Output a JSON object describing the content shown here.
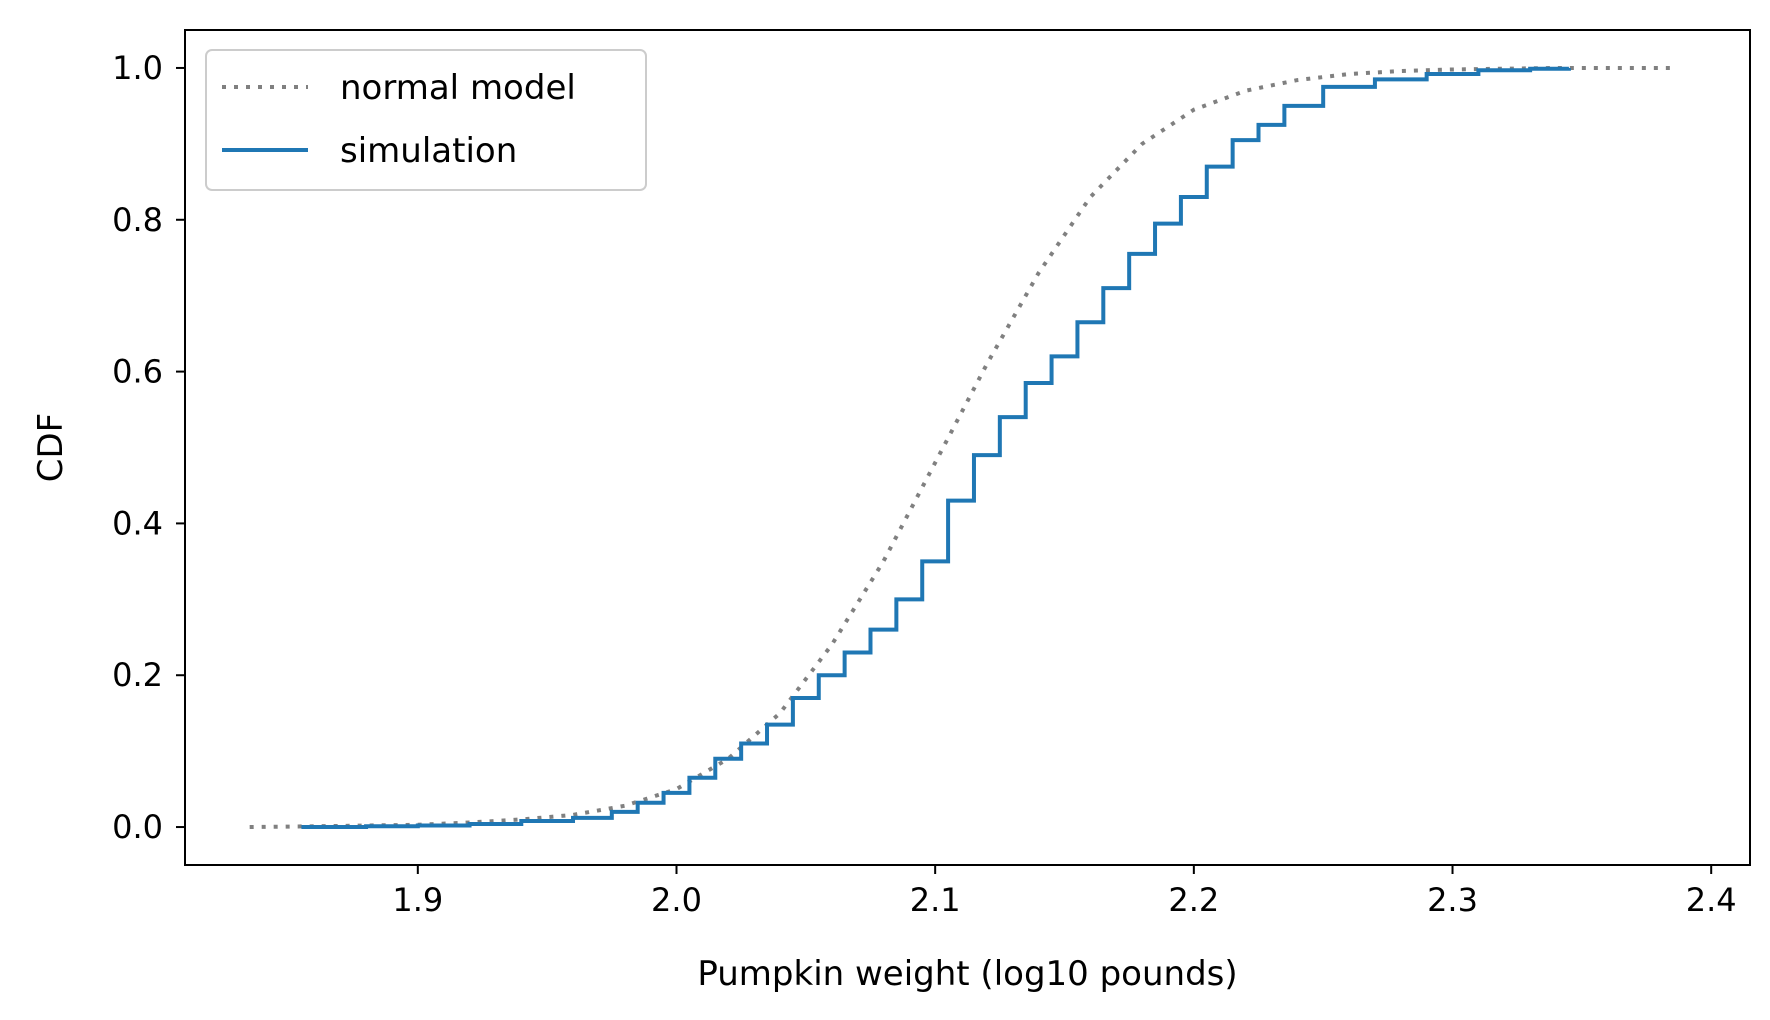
{
  "chart_data": {
    "type": "line",
    "title": "",
    "xlabel": "Pumpkin weight (log10 pounds)",
    "ylabel": "CDF",
    "xlim": [
      1.81,
      2.415
    ],
    "ylim": [
      -0.05,
      1.05
    ],
    "xticks": [
      {
        "value": 1.9,
        "label": "1.9"
      },
      {
        "value": 2.0,
        "label": "2.0"
      },
      {
        "value": 2.1,
        "label": "2.1"
      },
      {
        "value": 2.2,
        "label": "2.2"
      },
      {
        "value": 2.3,
        "label": "2.3"
      },
      {
        "value": 2.4,
        "label": "2.4"
      }
    ],
    "yticks": [
      {
        "value": 0.0,
        "label": "0.0"
      },
      {
        "value": 0.2,
        "label": "0.2"
      },
      {
        "value": 0.4,
        "label": "0.4"
      },
      {
        "value": 0.6,
        "label": "0.6"
      },
      {
        "value": 0.8,
        "label": "0.8"
      },
      {
        "value": 1.0,
        "label": "1.0"
      }
    ],
    "grid": false,
    "legend_position": "upper-left",
    "series": [
      {
        "name": "normal model",
        "style": "dotted",
        "color": "#808080",
        "x": [
          1.835,
          1.86,
          1.88,
          1.9,
          1.92,
          1.94,
          1.96,
          1.98,
          2.0,
          2.02,
          2.04,
          2.06,
          2.08,
          2.1,
          2.12,
          2.14,
          2.16,
          2.18,
          2.2,
          2.22,
          2.24,
          2.26,
          2.28,
          2.3,
          2.32,
          2.34,
          2.36,
          2.385
        ],
        "y": [
          0.0,
          0.001,
          0.002,
          0.003,
          0.006,
          0.01,
          0.016,
          0.028,
          0.05,
          0.09,
          0.15,
          0.24,
          0.35,
          0.48,
          0.61,
          0.73,
          0.83,
          0.9,
          0.945,
          0.97,
          0.984,
          0.992,
          0.996,
          0.998,
          0.999,
          1.0,
          1.0,
          1.0
        ]
      },
      {
        "name": "simulation",
        "style": "solid",
        "color": "#1f77b4",
        "x": [
          1.855,
          1.88,
          1.9,
          1.92,
          1.94,
          1.96,
          1.975,
          1.985,
          1.995,
          2.005,
          2.015,
          2.025,
          2.035,
          2.045,
          2.055,
          2.065,
          2.075,
          2.085,
          2.095,
          2.105,
          2.115,
          2.125,
          2.135,
          2.145,
          2.155,
          2.165,
          2.175,
          2.185,
          2.195,
          2.205,
          2.215,
          2.225,
          2.235,
          2.25,
          2.27,
          2.29,
          2.31,
          2.33,
          2.345
        ],
        "y": [
          0.0,
          0.001,
          0.002,
          0.004,
          0.008,
          0.012,
          0.02,
          0.032,
          0.045,
          0.065,
          0.09,
          0.11,
          0.135,
          0.17,
          0.2,
          0.23,
          0.26,
          0.3,
          0.35,
          0.43,
          0.49,
          0.54,
          0.585,
          0.62,
          0.665,
          0.71,
          0.755,
          0.795,
          0.83,
          0.87,
          0.905,
          0.925,
          0.95,
          0.975,
          0.985,
          0.992,
          0.997,
          0.999,
          1.0
        ]
      }
    ]
  }
}
